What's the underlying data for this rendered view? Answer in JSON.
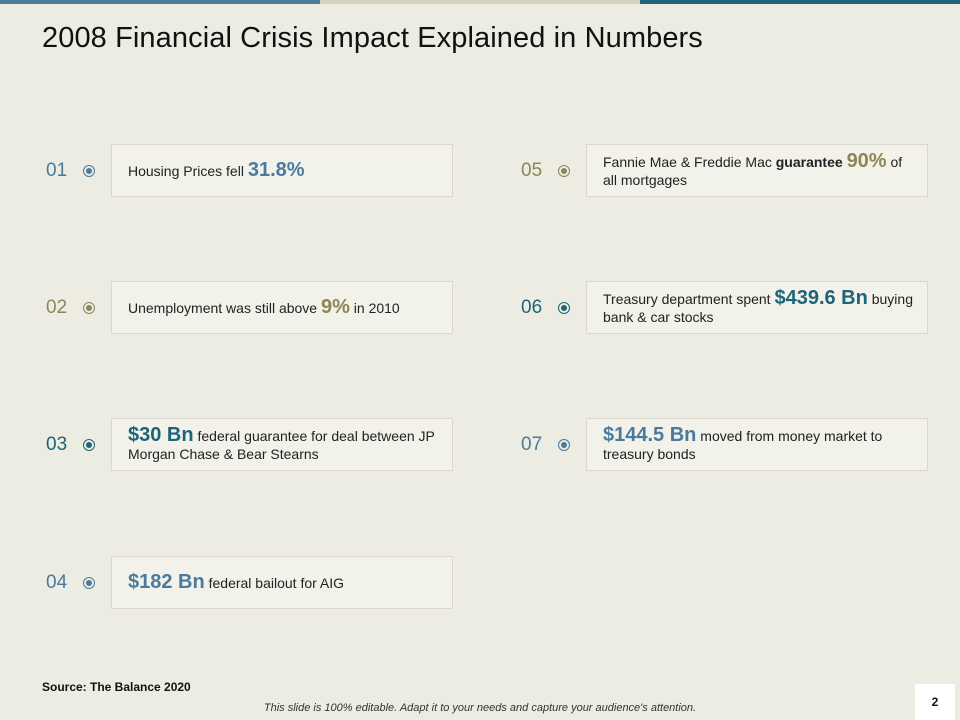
{
  "slide": {
    "title": "2008 Financial Crisis Impact Explained in Numbers",
    "colors": {
      "background": "#EDECE3",
      "blue": "#4A7B9D",
      "olive": "#8E8656",
      "teal": "#1E6479",
      "card": "#F2F1EA"
    },
    "top_bar_colors": [
      "#4A7B9D",
      "#D6D3C2",
      "#1E6479"
    ]
  },
  "items": [
    {
      "num": "01",
      "color": "blue",
      "parts": [
        {
          "t": "Housing Prices fell "
        },
        {
          "t": "31.8%",
          "s": "hl"
        }
      ]
    },
    {
      "num": "02",
      "color": "olive",
      "parts": [
        {
          "t": "Unemployment was still above "
        },
        {
          "t": "9%",
          "s": "hl"
        },
        {
          "t": " in 2010"
        }
      ]
    },
    {
      "num": "03",
      "color": "teal",
      "parts": [
        {
          "t": "$30 Bn",
          "s": "hl"
        },
        {
          "t": "  federal guarantee for deal between JP Morgan Chase & Bear Stearns"
        }
      ]
    },
    {
      "num": "04",
      "color": "blue",
      "parts": [
        {
          "t": "$182 Bn",
          "s": "hl"
        },
        {
          "t": "  federal bailout for AIG"
        }
      ]
    },
    {
      "num": "05",
      "color": "olive",
      "parts": [
        {
          "t": "Fannie Mae & Freddie Mac "
        },
        {
          "t": "guarantee",
          "s": "bold"
        },
        {
          "t": " "
        },
        {
          "t": "90%",
          "s": "hl"
        },
        {
          "t": " of all mortgages"
        }
      ]
    },
    {
      "num": "06",
      "color": "teal",
      "parts": [
        {
          "t": "Treasury department spent "
        },
        {
          "t": "$439.6 Bn",
          "s": "hl"
        },
        {
          "t": " buying bank & car stocks"
        }
      ]
    },
    {
      "num": "07",
      "color": "blue",
      "parts": [
        {
          "t": "$144.5 Bn",
          "s": "hl"
        },
        {
          "t": "  moved from money market to treasury bonds"
        }
      ]
    }
  ],
  "footer": {
    "source": "Source: The Balance 2020",
    "note": "This slide is 100% editable. Adapt it to your needs and capture your audience's attention.",
    "page_number": "2"
  }
}
